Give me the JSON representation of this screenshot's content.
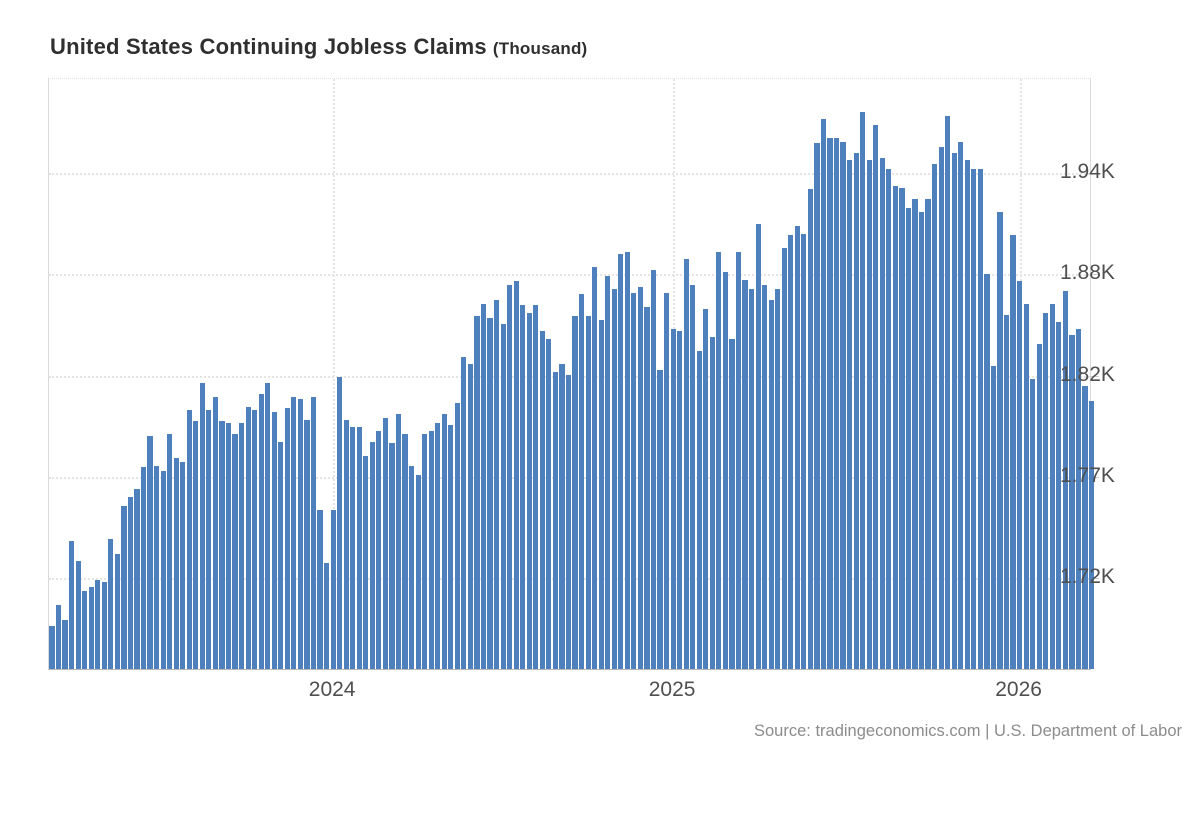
{
  "header": {
    "title": "United States Continuing Jobless Claims",
    "title_suffix": "(Thousand)"
  },
  "footer": {
    "source": "Source: tradingeconomics.com | U.S. Department of Labor"
  },
  "colors": {
    "bar": "#4d80bc",
    "grid": "#e4e4e4",
    "axis_text": "#4f4f4f",
    "title_text": "#2f2f2f",
    "source_text": "#8c8c8c"
  },
  "chart_data": {
    "type": "bar",
    "title": "United States Continuing Jobless Claims",
    "unit": "Thousand",
    "series_name": "Continuing Jobless Claims (Thousand)",
    "frequency": "weekly",
    "ylabel": "",
    "xlabel": "",
    "grid": "dotted",
    "legend": "none",
    "y_axis": {
      "side": "right",
      "tick_labels": [
        "1.94K",
        "1.88K",
        "1.82K",
        "1.77K",
        "1.72K"
      ],
      "tick_values": [
        1940,
        1885,
        1830,
        1775,
        1720
      ],
      "approx_range": [
        1669,
        1991
      ]
    },
    "x_axis": {
      "tick_labels": [
        "2024",
        "2025",
        "2026"
      ],
      "tick_bar_indices": [
        43,
        95,
        148
      ]
    },
    "values": [
      1693,
      1704,
      1696,
      1739,
      1728,
      1712,
      1714,
      1718,
      1717,
      1740,
      1732,
      1758,
      1763,
      1767,
      1779,
      1796,
      1780,
      1777,
      1797,
      1784,
      1782,
      1810,
      1804,
      1825,
      1810,
      1817,
      1804,
      1803,
      1797,
      1803,
      1812,
      1810,
      1819,
      1825,
      1809,
      1793,
      1811,
      1817,
      1816,
      1805,
      1817,
      1756,
      1727,
      1756,
      1828,
      1805,
      1801,
      1801,
      1785,
      1793,
      1799,
      1806,
      1792,
      1808,
      1797,
      1780,
      1775,
      1797,
      1799,
      1803,
      1808,
      1802,
      1814,
      1839,
      1835,
      1861,
      1868,
      1860,
      1870,
      1857,
      1878,
      1880,
      1867,
      1863,
      1867,
      1853,
      1849,
      1831,
      1835,
      1829,
      1861,
      1873,
      1861,
      1888,
      1859,
      1883,
      1876,
      1895,
      1896,
      1874,
      1877,
      1866,
      1886,
      1832,
      1874,
      1854,
      1853,
      1892,
      1878,
      1842,
      1865,
      1850,
      1896,
      1885,
      1849,
      1896,
      1881,
      1876,
      1911,
      1878,
      1870,
      1876,
      1898,
      1905,
      1910,
      1906,
      1930,
      1955,
      1968,
      1958,
      1958,
      1956,
      1946,
      1950,
      1972,
      1946,
      1965,
      1947,
      1941,
      1932,
      1931,
      1920,
      1925,
      1918,
      1925,
      1944,
      1953,
      1970,
      1950,
      1956,
      1946,
      1941,
      1941,
      1884,
      1834,
      1918,
      1862,
      1905,
      1880,
      1868,
      1827,
      1846,
      1863,
      1868,
      1858,
      1875,
      1851,
      1854,
      1823,
      1815
    ]
  }
}
